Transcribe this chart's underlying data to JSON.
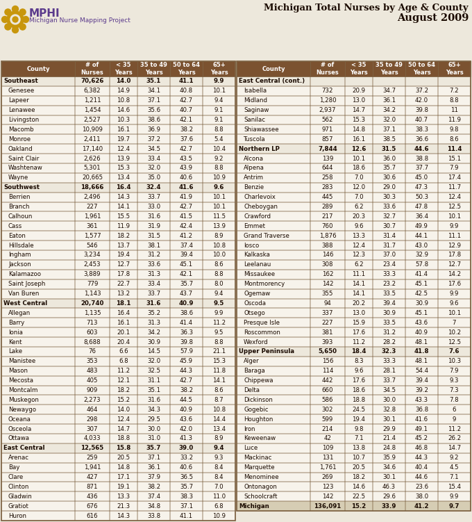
{
  "title_line1": "Michigan Total Nurses by Age & County",
  "title_line2": "August 2009",
  "subtitle": "Michigan Nurse Mapping Project",
  "left_table": [
    {
      "name": "Southeast",
      "bold": true,
      "indent": false,
      "nurses": "70,626",
      "c35": "14.0",
      "c3549": "35.1",
      "c5064": "41.1",
      "c65": "9.9"
    },
    {
      "name": "Genesee",
      "bold": false,
      "indent": true,
      "nurses": "6,382",
      "c35": "14.9",
      "c3549": "34.1",
      "c5064": "40.8",
      "c65": "10.1"
    },
    {
      "name": "Lapeer",
      "bold": false,
      "indent": true,
      "nurses": "1,211",
      "c35": "10.8",
      "c3549": "37.1",
      "c5064": "42.7",
      "c65": "9.4"
    },
    {
      "name": "Lenawee",
      "bold": false,
      "indent": true,
      "nurses": "1,454",
      "c35": "14.6",
      "c3549": "35.6",
      "c5064": "40.7",
      "c65": "9.1"
    },
    {
      "name": "Livingston",
      "bold": false,
      "indent": true,
      "nurses": "2,527",
      "c35": "10.3",
      "c3549": "38.6",
      "c5064": "42.1",
      "c65": "9.1"
    },
    {
      "name": "Macomb",
      "bold": false,
      "indent": true,
      "nurses": "10,909",
      "c35": "16.1",
      "c3549": "36.9",
      "c5064": "38.2",
      "c65": "8.8"
    },
    {
      "name": "Monroe",
      "bold": false,
      "indent": true,
      "nurses": "2,411",
      "c35": "19.7",
      "c3549": "37.2",
      "c5064": "37.6",
      "c65": "5.4"
    },
    {
      "name": "Oakland",
      "bold": false,
      "indent": true,
      "nurses": "17,140",
      "c35": "12.4",
      "c3549": "34.5",
      "c5064": "42.7",
      "c65": "10.4"
    },
    {
      "name": "Saint Clair",
      "bold": false,
      "indent": true,
      "nurses": "2,626",
      "c35": "13.9",
      "c3549": "33.4",
      "c5064": "43.5",
      "c65": "9.2"
    },
    {
      "name": "Washtenaw",
      "bold": false,
      "indent": true,
      "nurses": "5,301",
      "c35": "15.3",
      "c3549": "32.0",
      "c5064": "43.9",
      "c65": "8.8"
    },
    {
      "name": "Wayne",
      "bold": false,
      "indent": true,
      "nurses": "20,665",
      "c35": "13.4",
      "c3549": "35.0",
      "c5064": "40.6",
      "c65": "10.9"
    },
    {
      "name": "Southwest",
      "bold": true,
      "indent": false,
      "nurses": "18,666",
      "c35": "16.4",
      "c3549": "32.4",
      "c5064": "41.6",
      "c65": "9.6"
    },
    {
      "name": "Berrien",
      "bold": false,
      "indent": true,
      "nurses": "2,496",
      "c35": "14.3",
      "c3549": "33.7",
      "c5064": "41.9",
      "c65": "10.1"
    },
    {
      "name": "Branch",
      "bold": false,
      "indent": true,
      "nurses": "227",
      "c35": "14.1",
      "c3549": "33.0",
      "c5064": "42.7",
      "c65": "10.1"
    },
    {
      "name": "Calhoun",
      "bold": false,
      "indent": true,
      "nurses": "1,961",
      "c35": "15.5",
      "c3549": "31.6",
      "c5064": "41.5",
      "c65": "11.5"
    },
    {
      "name": "Cass",
      "bold": false,
      "indent": true,
      "nurses": "361",
      "c35": "11.9",
      "c3549": "31.9",
      "c5064": "42.4",
      "c65": "13.9"
    },
    {
      "name": "Eaton",
      "bold": false,
      "indent": true,
      "nurses": "1,577",
      "c35": "18.2",
      "c3549": "31.5",
      "c5064": "41.2",
      "c65": "8.9"
    },
    {
      "name": "Hillsdale",
      "bold": false,
      "indent": true,
      "nurses": "546",
      "c35": "13.7",
      "c3549": "38.1",
      "c5064": "37.4",
      "c65": "10.8"
    },
    {
      "name": "Ingham",
      "bold": false,
      "indent": true,
      "nurses": "3,234",
      "c35": "19.4",
      "c3549": "31.2",
      "c5064": "39.4",
      "c65": "10.0"
    },
    {
      "name": "Jackson",
      "bold": false,
      "indent": true,
      "nurses": "2,453",
      "c35": "12.7",
      "c3549": "33.6",
      "c5064": "45.1",
      "c65": "8.6"
    },
    {
      "name": "Kalamazoo",
      "bold": false,
      "indent": true,
      "nurses": "3,889",
      "c35": "17.8",
      "c3549": "31.3",
      "c5064": "42.1",
      "c65": "8.8"
    },
    {
      "name": "Saint Joseph",
      "bold": false,
      "indent": true,
      "nurses": "779",
      "c35": "22.7",
      "c3549": "33.4",
      "c5064": "35.7",
      "c65": "8.0"
    },
    {
      "name": "Van Buren",
      "bold": false,
      "indent": true,
      "nurses": "1,143",
      "c35": "13.2",
      "c3549": "33.7",
      "c5064": "43.7",
      "c65": "9.4"
    },
    {
      "name": "West Central",
      "bold": true,
      "indent": false,
      "nurses": "20,740",
      "c35": "18.1",
      "c3549": "31.6",
      "c5064": "40.9",
      "c65": "9.5"
    },
    {
      "name": "Allegan",
      "bold": false,
      "indent": true,
      "nurses": "1,135",
      "c35": "16.4",
      "c3549": "35.2",
      "c5064": "38.6",
      "c65": "9.9"
    },
    {
      "name": "Barry",
      "bold": false,
      "indent": true,
      "nurses": "713",
      "c35": "16.1",
      "c3549": "31.3",
      "c5064": "41.4",
      "c65": "11.2"
    },
    {
      "name": "Ionia",
      "bold": false,
      "indent": true,
      "nurses": "603",
      "c35": "20.1",
      "c3549": "34.2",
      "c5064": "36.3",
      "c65": "9.5"
    },
    {
      "name": "Kent",
      "bold": false,
      "indent": true,
      "nurses": "8,688",
      "c35": "20.4",
      "c3549": "30.9",
      "c5064": "39.8",
      "c65": "8.8"
    },
    {
      "name": "Lake",
      "bold": false,
      "indent": true,
      "nurses": "76",
      "c35": "6.6",
      "c3549": "14.5",
      "c5064": "57.9",
      "c65": "21.1"
    },
    {
      "name": "Manistee",
      "bold": false,
      "indent": true,
      "nurses": "353",
      "c35": "6.8",
      "c3549": "32.0",
      "c5064": "45.9",
      "c65": "15.3"
    },
    {
      "name": "Mason",
      "bold": false,
      "indent": true,
      "nurses": "483",
      "c35": "11.2",
      "c3549": "32.5",
      "c5064": "44.3",
      "c65": "11.8"
    },
    {
      "name": "Mecosta",
      "bold": false,
      "indent": true,
      "nurses": "405",
      "c35": "12.1",
      "c3549": "31.1",
      "c5064": "42.7",
      "c65": "14.1"
    },
    {
      "name": "Montcalm",
      "bold": false,
      "indent": true,
      "nurses": "909",
      "c35": "18.2",
      "c3549": "35.1",
      "c5064": "38.2",
      "c65": "8.6"
    },
    {
      "name": "Muskegon",
      "bold": false,
      "indent": true,
      "nurses": "2,273",
      "c35": "15.2",
      "c3549": "31.6",
      "c5064": "44.5",
      "c65": "8.7"
    },
    {
      "name": "Newaygo",
      "bold": false,
      "indent": true,
      "nurses": "464",
      "c35": "14.0",
      "c3549": "34.3",
      "c5064": "40.9",
      "c65": "10.8"
    },
    {
      "name": "Oceana",
      "bold": false,
      "indent": true,
      "nurses": "298",
      "c35": "12.4",
      "c3549": "29.5",
      "c5064": "43.6",
      "c65": "14.4"
    },
    {
      "name": "Osceola",
      "bold": false,
      "indent": true,
      "nurses": "307",
      "c35": "14.7",
      "c3549": "30.0",
      "c5064": "42.0",
      "c65": "13.4"
    },
    {
      "name": "Ottawa",
      "bold": false,
      "indent": true,
      "nurses": "4,033",
      "c35": "18.8",
      "c3549": "31.0",
      "c5064": "41.3",
      "c65": "8.9"
    },
    {
      "name": "East Central",
      "bold": true,
      "indent": false,
      "nurses": "12,565",
      "c35": "15.8",
      "c3549": "35.7",
      "c5064": "39.0",
      "c65": "9.4"
    },
    {
      "name": "Arenac",
      "bold": false,
      "indent": true,
      "nurses": "259",
      "c35": "20.5",
      "c3549": "37.1",
      "c5064": "33.2",
      "c65": "9.3"
    },
    {
      "name": "Bay",
      "bold": false,
      "indent": true,
      "nurses": "1,941",
      "c35": "14.8",
      "c3549": "36.1",
      "c5064": "40.6",
      "c65": "8.4"
    },
    {
      "name": "Clare",
      "bold": false,
      "indent": true,
      "nurses": "427",
      "c35": "17.1",
      "c3549": "37.9",
      "c5064": "36.5",
      "c65": "8.4"
    },
    {
      "name": "Clinton",
      "bold": false,
      "indent": true,
      "nurses": "871",
      "c35": "19.1",
      "c3549": "38.2",
      "c5064": "35.7",
      "c65": "7.0"
    },
    {
      "name": "Gladwin",
      "bold": false,
      "indent": true,
      "nurses": "436",
      "c35": "13.3",
      "c3549": "37.4",
      "c5064": "38.3",
      "c65": "11.0"
    },
    {
      "name": "Gratiot",
      "bold": false,
      "indent": true,
      "nurses": "676",
      "c35": "21.3",
      "c3549": "34.8",
      "c5064": "37.1",
      "c65": "6.8"
    },
    {
      "name": "Huron",
      "bold": false,
      "indent": true,
      "nurses": "616",
      "c35": "14.3",
      "c3549": "33.8",
      "c5064": "41.1",
      "c65": "10.9"
    }
  ],
  "right_table": [
    {
      "name": "East Central (cont.)",
      "bold": true,
      "indent": false,
      "nurses": "",
      "c35": "",
      "c3549": "",
      "c5064": "",
      "c65": ""
    },
    {
      "name": "Isabella",
      "bold": false,
      "indent": true,
      "nurses": "732",
      "c35": "20.9",
      "c3549": "34.7",
      "c5064": "37.2",
      "c65": "7.2"
    },
    {
      "name": "Midland",
      "bold": false,
      "indent": true,
      "nurses": "1,280",
      "c35": "13.0",
      "c3549": "36.1",
      "c5064": "42.0",
      "c65": "8.8"
    },
    {
      "name": "Saginaw",
      "bold": false,
      "indent": true,
      "nurses": "2,937",
      "c35": "14.7",
      "c3549": "34.2",
      "c5064": "39.8",
      "c65": "11"
    },
    {
      "name": "Sanilac",
      "bold": false,
      "indent": true,
      "nurses": "562",
      "c35": "15.3",
      "c3549": "32.0",
      "c5064": "40.7",
      "c65": "11.9"
    },
    {
      "name": "Shiawassee",
      "bold": false,
      "indent": true,
      "nurses": "971",
      "c35": "14.8",
      "c3549": "37.1",
      "c5064": "38.3",
      "c65": "9.8"
    },
    {
      "name": "Tuscola",
      "bold": false,
      "indent": true,
      "nurses": "857",
      "c35": "16.1",
      "c3549": "38.5",
      "c5064": "36.6",
      "c65": "8.6"
    },
    {
      "name": "Northern LP",
      "bold": true,
      "indent": false,
      "nurses": "7,844",
      "c35": "12.6",
      "c3549": "31.5",
      "c5064": "44.6",
      "c65": "11.4"
    },
    {
      "name": "Alcona",
      "bold": false,
      "indent": true,
      "nurses": "139",
      "c35": "10.1",
      "c3549": "36.0",
      "c5064": "38.8",
      "c65": "15.1"
    },
    {
      "name": "Alpena",
      "bold": false,
      "indent": true,
      "nurses": "644",
      "c35": "18.6",
      "c3549": "35.7",
      "c5064": "37.7",
      "c65": "7.9"
    },
    {
      "name": "Antrim",
      "bold": false,
      "indent": true,
      "nurses": "258",
      "c35": "7.0",
      "c3549": "30.6",
      "c5064": "45.0",
      "c65": "17.4"
    },
    {
      "name": "Benzie",
      "bold": false,
      "indent": true,
      "nurses": "283",
      "c35": "12.0",
      "c3549": "29.0",
      "c5064": "47.3",
      "c65": "11.7"
    },
    {
      "name": "Charlevoix",
      "bold": false,
      "indent": true,
      "nurses": "445",
      "c35": "7.0",
      "c3549": "30.3",
      "c5064": "50.3",
      "c65": "12.4"
    },
    {
      "name": "Cheboygan",
      "bold": false,
      "indent": true,
      "nurses": "289",
      "c35": "6.2",
      "c3549": "33.6",
      "c5064": "47.8",
      "c65": "12.5"
    },
    {
      "name": "Crawford",
      "bold": false,
      "indent": true,
      "nurses": "217",
      "c35": "20.3",
      "c3549": "32.7",
      "c5064": "36.4",
      "c65": "10.1"
    },
    {
      "name": "Emmet",
      "bold": false,
      "indent": true,
      "nurses": "760",
      "c35": "9.6",
      "c3549": "30.7",
      "c5064": "49.9",
      "c65": "9.9"
    },
    {
      "name": "Grand Traverse",
      "bold": false,
      "indent": true,
      "nurses": "1,876",
      "c35": "13.3",
      "c3549": "31.4",
      "c5064": "44.1",
      "c65": "11.1"
    },
    {
      "name": "Iosco",
      "bold": false,
      "indent": true,
      "nurses": "388",
      "c35": "12.4",
      "c3549": "31.7",
      "c5064": "43.0",
      "c65": "12.9"
    },
    {
      "name": "Kalkaska",
      "bold": false,
      "indent": true,
      "nurses": "146",
      "c35": "12.3",
      "c3549": "37.0",
      "c5064": "32.9",
      "c65": "17.8"
    },
    {
      "name": "Leelanau",
      "bold": false,
      "indent": true,
      "nurses": "308",
      "c35": "6.2",
      "c3549": "23.4",
      "c5064": "57.8",
      "c65": "12.7"
    },
    {
      "name": "Missaukee",
      "bold": false,
      "indent": true,
      "nurses": "162",
      "c35": "11.1",
      "c3549": "33.3",
      "c5064": "41.4",
      "c65": "14.2"
    },
    {
      "name": "Montmorency",
      "bold": false,
      "indent": true,
      "nurses": "142",
      "c35": "14.1",
      "c3549": "23.2",
      "c5064": "45.1",
      "c65": "17.6"
    },
    {
      "name": "Ogemaw",
      "bold": false,
      "indent": true,
      "nurses": "355",
      "c35": "14.1",
      "c3549": "33.5",
      "c5064": "42.5",
      "c65": "9.9"
    },
    {
      "name": "Oscoda",
      "bold": false,
      "indent": true,
      "nurses": "94",
      "c35": "20.2",
      "c3549": "39.4",
      "c5064": "30.9",
      "c65": "9.6"
    },
    {
      "name": "Otsego",
      "bold": false,
      "indent": true,
      "nurses": "337",
      "c35": "13.0",
      "c3549": "30.9",
      "c5064": "45.1",
      "c65": "10.1"
    },
    {
      "name": "Presque Isle",
      "bold": false,
      "indent": true,
      "nurses": "227",
      "c35": "15.9",
      "c3549": "33.5",
      "c5064": "43.6",
      "c65": "7"
    },
    {
      "name": "Roscommon",
      "bold": false,
      "indent": true,
      "nurses": "381",
      "c35": "17.6",
      "c3549": "31.2",
      "c5064": "40.9",
      "c65": "10.2"
    },
    {
      "name": "Wexford",
      "bold": false,
      "indent": true,
      "nurses": "393",
      "c35": "11.2",
      "c3549": "28.2",
      "c5064": "48.1",
      "c65": "12.5"
    },
    {
      "name": "Upper Peninsula",
      "bold": true,
      "indent": false,
      "nurses": "5,650",
      "c35": "18.4",
      "c3549": "32.3",
      "c5064": "41.8",
      "c65": "7.6"
    },
    {
      "name": "Alger",
      "bold": false,
      "indent": true,
      "nurses": "156",
      "c35": "8.3",
      "c3549": "33.3",
      "c5064": "48.1",
      "c65": "10.3"
    },
    {
      "name": "Baraga",
      "bold": false,
      "indent": true,
      "nurses": "114",
      "c35": "9.6",
      "c3549": "28.1",
      "c5064": "54.4",
      "c65": "7.9"
    },
    {
      "name": "Chippewa",
      "bold": false,
      "indent": true,
      "nurses": "442",
      "c35": "17.6",
      "c3549": "33.7",
      "c5064": "39.4",
      "c65": "9.3"
    },
    {
      "name": "Delta",
      "bold": false,
      "indent": true,
      "nurses": "660",
      "c35": "18.6",
      "c3549": "34.5",
      "c5064": "39.2",
      "c65": "7.3"
    },
    {
      "name": "Dickinson",
      "bold": false,
      "indent": true,
      "nurses": "586",
      "c35": "18.8",
      "c3549": "30.0",
      "c5064": "43.3",
      "c65": "7.8"
    },
    {
      "name": "Gogebic",
      "bold": false,
      "indent": true,
      "nurses": "302",
      "c35": "24.5",
      "c3549": "32.8",
      "c5064": "36.8",
      "c65": "6"
    },
    {
      "name": "Houghton",
      "bold": false,
      "indent": true,
      "nurses": "599",
      "c35": "19.4",
      "c3549": "30.1",
      "c5064": "41.6",
      "c65": "9"
    },
    {
      "name": "Iron",
      "bold": false,
      "indent": true,
      "nurses": "214",
      "c35": "9.8",
      "c3549": "29.9",
      "c5064": "49.1",
      "c65": "11.2"
    },
    {
      "name": "Keweenaw",
      "bold": false,
      "indent": true,
      "nurses": "42",
      "c35": "7.1",
      "c3549": "21.4",
      "c5064": "45.2",
      "c65": "26.2"
    },
    {
      "name": "Luce",
      "bold": false,
      "indent": true,
      "nurses": "109",
      "c35": "13.8",
      "c3549": "24.8",
      "c5064": "46.8",
      "c65": "14.7"
    },
    {
      "name": "Mackinac",
      "bold": false,
      "indent": true,
      "nurses": "131",
      "c35": "10.7",
      "c3549": "35.9",
      "c5064": "44.3",
      "c65": "9.2"
    },
    {
      "name": "Marquette",
      "bold": false,
      "indent": true,
      "nurses": "1,761",
      "c35": "20.5",
      "c3549": "34.6",
      "c5064": "40.4",
      "c65": "4.5"
    },
    {
      "name": "Menominee",
      "bold": false,
      "indent": true,
      "nurses": "269",
      "c35": "18.2",
      "c3549": "30.1",
      "c5064": "44.6",
      "c65": "7.1"
    },
    {
      "name": "Ontonagon",
      "bold": false,
      "indent": true,
      "nurses": "123",
      "c35": "14.6",
      "c3549": "46.3",
      "c5064": "23.6",
      "c65": "15.4"
    },
    {
      "name": "Schoolcraft",
      "bold": false,
      "indent": true,
      "nurses": "142",
      "c35": "22.5",
      "c3549": "29.6",
      "c5064": "38.0",
      "c65": "9.9"
    },
    {
      "name": "Michigan",
      "bold": true,
      "indent": false,
      "nurses": "136,091",
      "c35": "15.2",
      "c3549": "33.9",
      "c5064": "41.2",
      "c65": "9.7"
    }
  ],
  "header_bg": "#7B5230",
  "header_text": "#FFFFFF",
  "region_bg": "#EDE8DC",
  "county_bg": "#F7F3EB",
  "border_color": "#7B6040",
  "text_color": "#1A0A00",
  "title_color": "#1A0A00",
  "mphi_purple": "#5B3A8C",
  "mphi_gold": "#C8960C",
  "bg_color": "#EDE8DC"
}
